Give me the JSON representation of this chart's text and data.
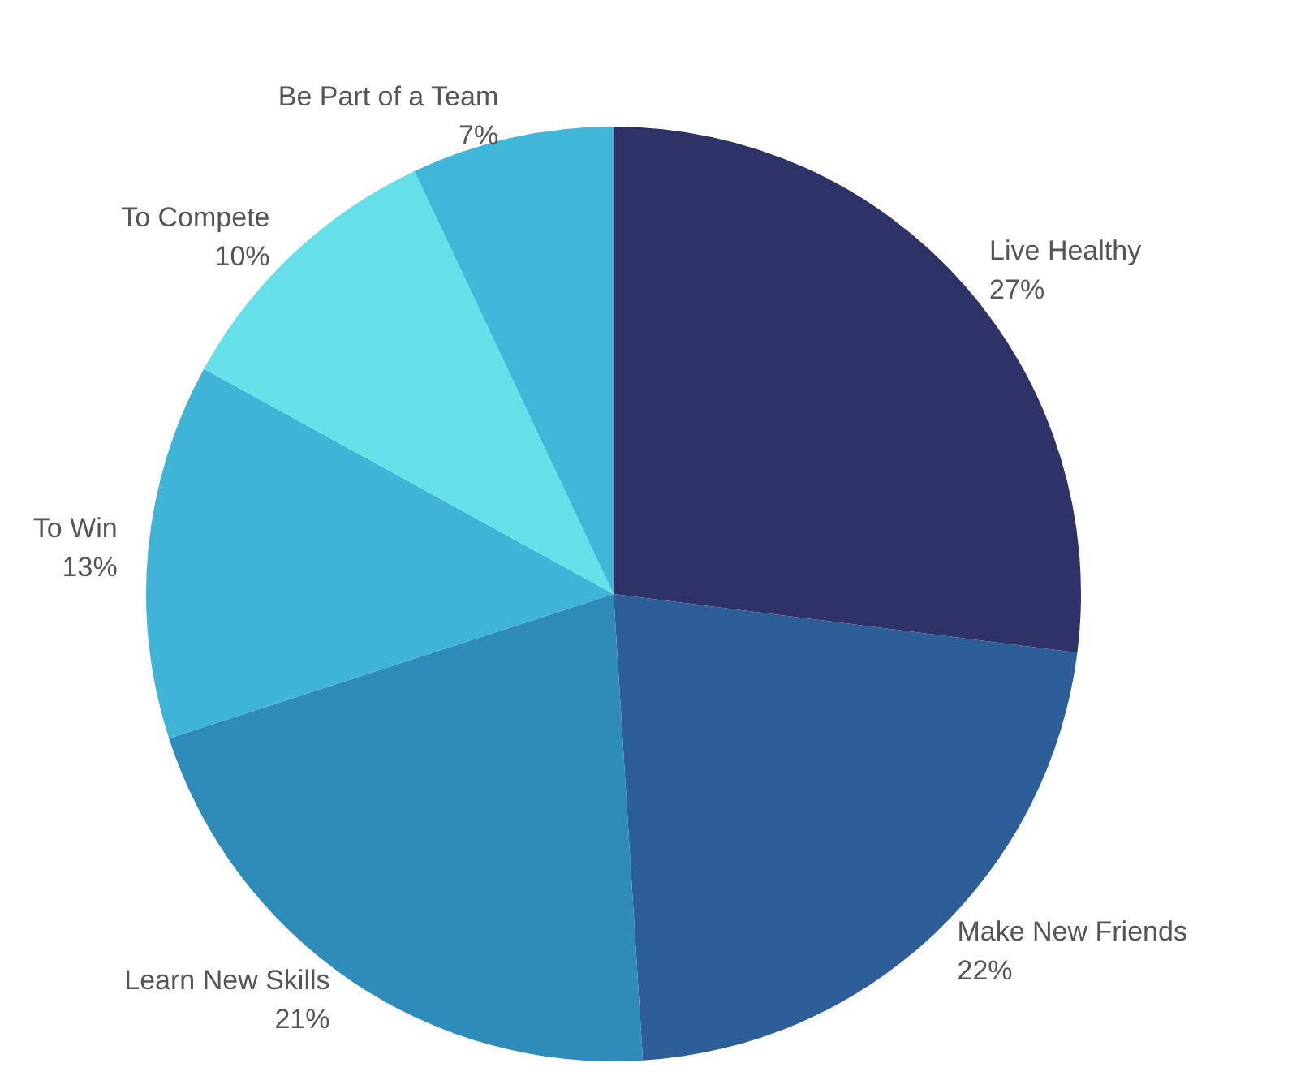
{
  "chart_data": {
    "type": "pie",
    "categories": [
      "Live Healthy",
      "Make New Friends",
      "Learn New Skills",
      "To Win",
      "To Compete",
      "Be Part of a Team"
    ],
    "values": [
      27,
      22,
      21,
      13,
      10,
      7
    ],
    "value_labels": [
      "27%",
      "22%",
      "21%",
      "13%",
      "10%",
      "7%"
    ],
    "colors": [
      "#2e3267",
      "#2e5e97",
      "#2e8bba",
      "#3fb4d6",
      "#66e0e8",
      "#40b6d8"
    ],
    "legend": false
  }
}
